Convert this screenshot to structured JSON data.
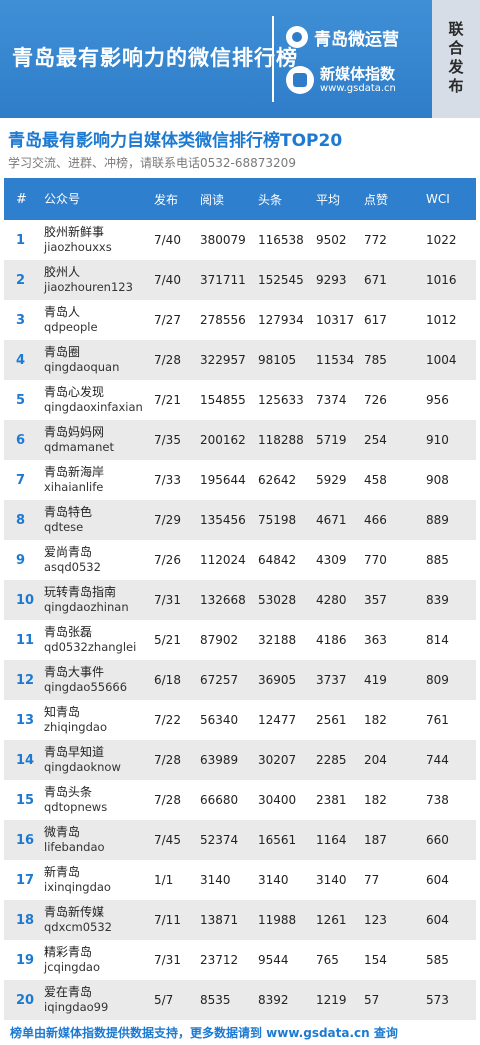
{
  "banner": {
    "title": "青岛最有影响力的微信排行榜",
    "brand1_name": "青岛微运营",
    "brand2_name": "新媒体指数",
    "brand2_url": "www.gsdata.cn",
    "publish": "联合发布"
  },
  "subtitle": "青岛最有影响力自媒体类微信排行榜TOP20",
  "contact": "学习交流、进群、冲榜，请联系电话0532-68873209",
  "table": {
    "headers": [
      "#",
      "公众号",
      "发布",
      "阅读",
      "头条",
      "平均",
      "点赞",
      "WCI"
    ],
    "rows": [
      {
        "rank": "1",
        "name": "胶州新鲜事",
        "id": "jiaozhouxxs",
        "publish": "7/40",
        "read": "380079",
        "headline": "116538",
        "avg": "9502",
        "like": "772",
        "wci": "1022"
      },
      {
        "rank": "2",
        "name": "胶州人",
        "id": "jiaozhouren123",
        "publish": "7/40",
        "read": "371711",
        "headline": "152545",
        "avg": "9293",
        "like": "671",
        "wci": "1016"
      },
      {
        "rank": "3",
        "name": "青岛人",
        "id": "qdpeople",
        "publish": "7/27",
        "read": "278556",
        "headline": "127934",
        "avg": "10317",
        "like": "617",
        "wci": "1012"
      },
      {
        "rank": "4",
        "name": "青岛圈",
        "id": "qingdaoquan",
        "publish": "7/28",
        "read": "322957",
        "headline": "98105",
        "avg": "11534",
        "like": "785",
        "wci": "1004"
      },
      {
        "rank": "5",
        "name": "青岛心发现",
        "id": "qingdaoxinfaxian",
        "publish": "7/21",
        "read": "154855",
        "headline": "125633",
        "avg": "7374",
        "like": "726",
        "wci": "956"
      },
      {
        "rank": "6",
        "name": "青岛妈妈网",
        "id": "qdmamanet",
        "publish": "7/35",
        "read": "200162",
        "headline": "118288",
        "avg": "5719",
        "like": "254",
        "wci": "910"
      },
      {
        "rank": "7",
        "name": "青岛新海岸",
        "id": "xihaianlife",
        "publish": "7/33",
        "read": "195644",
        "headline": "62642",
        "avg": "5929",
        "like": "458",
        "wci": "908"
      },
      {
        "rank": "8",
        "name": "青岛特色",
        "id": "qdtese",
        "publish": "7/29",
        "read": "135456",
        "headline": "75198",
        "avg": "4671",
        "like": "466",
        "wci": "889"
      },
      {
        "rank": "9",
        "name": "爱尚青岛",
        "id": "asqd0532",
        "publish": "7/26",
        "read": "112024",
        "headline": "64842",
        "avg": "4309",
        "like": "770",
        "wci": "885"
      },
      {
        "rank": "10",
        "name": "玩转青岛指南",
        "id": "qingdaozhinan",
        "publish": "7/31",
        "read": "132668",
        "headline": "53028",
        "avg": "4280",
        "like": "357",
        "wci": "839"
      },
      {
        "rank": "11",
        "name": "青岛张磊",
        "id": "qd0532zhanglei",
        "publish": "5/21",
        "read": "87902",
        "headline": "32188",
        "avg": "4186",
        "like": "363",
        "wci": "814"
      },
      {
        "rank": "12",
        "name": "青岛大事件",
        "id": "qingdao55666",
        "publish": "6/18",
        "read": "67257",
        "headline": "36905",
        "avg": "3737",
        "like": "419",
        "wci": "809"
      },
      {
        "rank": "13",
        "name": "知青岛",
        "id": "zhiqingdao",
        "publish": "7/22",
        "read": "56340",
        "headline": "12477",
        "avg": "2561",
        "like": "182",
        "wci": "761"
      },
      {
        "rank": "14",
        "name": "青岛早知道",
        "id": "qingdaoknow",
        "publish": "7/28",
        "read": "63989",
        "headline": "30207",
        "avg": "2285",
        "like": "204",
        "wci": "744"
      },
      {
        "rank": "15",
        "name": "青岛头条",
        "id": "qdtopnews",
        "publish": "7/28",
        "read": "66680",
        "headline": "30400",
        "avg": "2381",
        "like": "182",
        "wci": "738"
      },
      {
        "rank": "16",
        "name": "微青岛",
        "id": "lifebandao",
        "publish": "7/45",
        "read": "52374",
        "headline": "16561",
        "avg": "1164",
        "like": "187",
        "wci": "660"
      },
      {
        "rank": "17",
        "name": "新青岛",
        "id": "ixinqingdao",
        "publish": "1/1",
        "read": "3140",
        "headline": "3140",
        "avg": "3140",
        "like": "77",
        "wci": "604"
      },
      {
        "rank": "18",
        "name": "青岛新传媒",
        "id": "qdxcm0532",
        "publish": "7/11",
        "read": "13871",
        "headline": "11988",
        "avg": "1261",
        "like": "123",
        "wci": "604"
      },
      {
        "rank": "19",
        "name": "精彩青岛",
        "id": "jcqingdao",
        "publish": "7/31",
        "read": "23712",
        "headline": "9544",
        "avg": "765",
        "like": "154",
        "wci": "585"
      },
      {
        "rank": "20",
        "name": "爱在青岛",
        "id": "iqingdao99",
        "publish": "5/7",
        "read": "8535",
        "headline": "8392",
        "avg": "1219",
        "like": "57",
        "wci": "573"
      }
    ]
  },
  "footer": "榜单由新媒体指数提供数据支持，更多数据请到 www.gsdata.cn 查询",
  "colors": {
    "banner": "#2f7dc9",
    "header": "#2f7fcf",
    "accent": "#1c7ad2",
    "alt_row": "#eaeaea"
  },
  "icons": {
    "brand1": "chat-bubble-icon",
    "brand2": "gsdata-logo-icon"
  }
}
